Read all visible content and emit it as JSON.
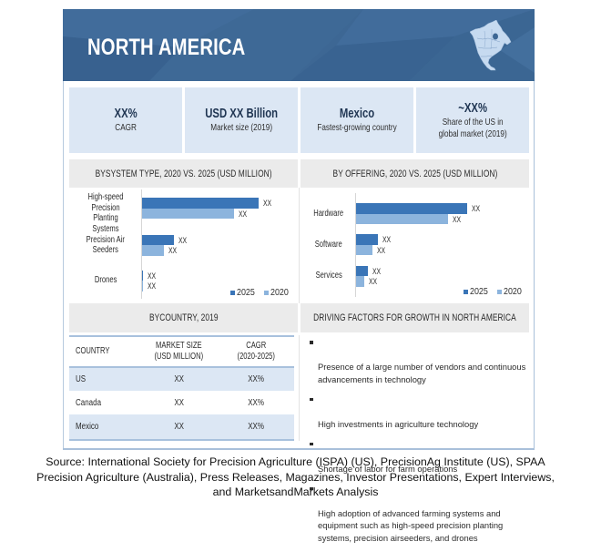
{
  "header": {
    "title": "NORTH AMERICA",
    "icon": "north-america-map-icon"
  },
  "kpis": [
    {
      "value": "XX%",
      "label": "CAGR"
    },
    {
      "value": "USD XX Billion",
      "label": "Market size (2019)"
    },
    {
      "value": "Mexico",
      "label": "Fastest-growing country"
    },
    {
      "value": "~XX%",
      "label": "Share of the US in\nglobal market (2019)"
    }
  ],
  "sections": {
    "system_type": "BYSYSTEM TYPE, 2020 VS. 2025 (USD MILLION)",
    "offering": "BY OFFERING, 2020 VS. 2025 (USD MILLION)",
    "country": "BYCOUNTRY, 2019",
    "factors": "DRIVING FACTORS FOR GROWTH IN NORTH AMERICA"
  },
  "colors": {
    "header_bg": "#3d6794",
    "kpi_bg": "#dce7f4",
    "section_bg": "#ebebeb",
    "series_2025": "#3a75b7",
    "series_2020": "#8cb4dd"
  },
  "chart_data": [
    {
      "type": "bar",
      "orientation": "horizontal",
      "title": "BYSYSTEM TYPE, 2020 VS. 2025 (USD MILLION)",
      "xlabel": "",
      "ylabel": "",
      "categories": [
        "High-speed\nPrecision Planting\nSystems",
        "Precision Air\nSeeders",
        "Drones"
      ],
      "value_note": "actual values masked as XX; values are relative bar lengths (largest = 100)",
      "series": [
        {
          "name": "2025",
          "color": "#3a75b7",
          "values": [
            100,
            27,
            1
          ],
          "data_labels": [
            "XX",
            "XX",
            "XX"
          ]
        },
        {
          "name": "2020",
          "color": "#8cb4dd",
          "values": [
            79,
            19,
            0.5
          ],
          "data_labels": [
            "XX",
            "XX",
            "XX"
          ]
        }
      ],
      "legend": "bottom-right",
      "grid": false
    },
    {
      "type": "bar",
      "orientation": "horizontal",
      "title": "BY OFFERING, 2020 VS. 2025 (USD MILLION)",
      "xlabel": "",
      "ylabel": "",
      "categories": [
        "Hardware",
        "Software",
        "Services"
      ],
      "value_note": "actual values masked as XX; values are relative bar lengths (largest = 100)",
      "series": [
        {
          "name": "2025",
          "color": "#3a75b7",
          "values": [
            100,
            20,
            11
          ],
          "data_labels": [
            "XX",
            "XX",
            "XX"
          ]
        },
        {
          "name": "2020",
          "color": "#8cb4dd",
          "values": [
            83,
            15,
            7
          ],
          "data_labels": [
            "XX",
            "XX",
            "XX"
          ]
        }
      ],
      "legend": "bottom-right",
      "grid": false
    }
  ],
  "country_table": {
    "columns": [
      "COUNTRY",
      "MARKET SIZE\n(USD MILLION)",
      "CAGR\n(2020-2025)"
    ],
    "rows": [
      [
        "US",
        "XX",
        "XX%"
      ],
      [
        "Canada",
        "XX",
        "XX%"
      ],
      [
        "Mexico",
        "XX",
        "XX%"
      ]
    ]
  },
  "driving_factors": [
    "Presence of a large number of vendors and continuous\nadvancements in technology",
    "High investments in agriculture technology",
    "Shortage of labor for farm operations",
    "High adoption of advanced farming systems and\nequipment such as high-speed precision planting\nsystems, precision airseeders, and drones"
  ],
  "source": [
    "Source: International Society for Precision Agriculture (ISPA) (US), PrecisionAg Institute (US), SPAA",
    "Precision Agriculture (Australia), Press Releases, Magazines, Investor Presentations, Expert Interviews,",
    "and MarketsandMarkets Analysis"
  ]
}
